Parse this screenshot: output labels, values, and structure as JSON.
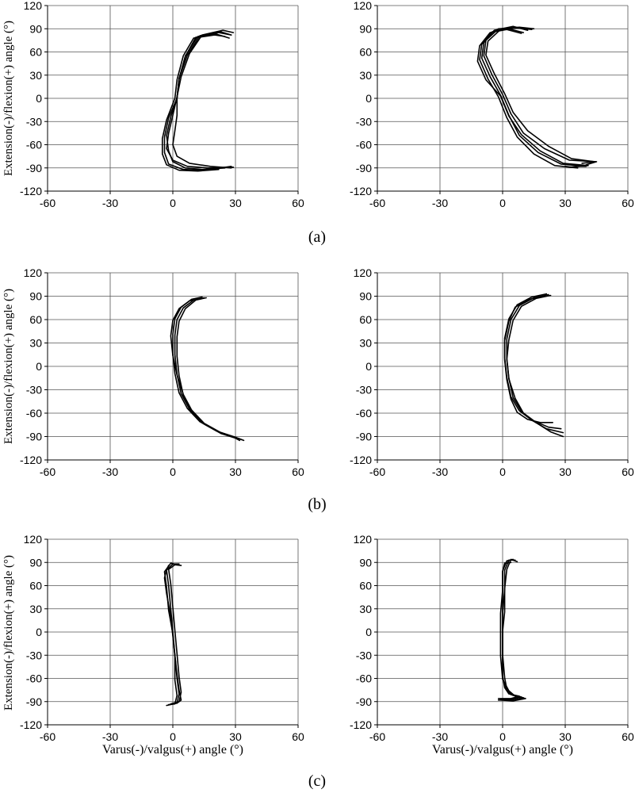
{
  "figure": {
    "captions": [
      "(a)",
      "(b)",
      "(c)"
    ],
    "ylabel": "Extension(-)/flexion(+) angle (°)",
    "xlabel": "Varus(-)/valgus(+) angle (°)"
  },
  "chart_data": [
    {
      "type": "line",
      "row": "a",
      "col": 1,
      "xlabel": "",
      "ylabel": "Extension(-)/flexion(+) angle (°)",
      "xlim": [
        -60,
        60
      ],
      "ylim": [
        -120,
        120
      ],
      "xticks": [
        -60,
        -30,
        0,
        30,
        60
      ],
      "yticks": [
        -120,
        -90,
        -60,
        -30,
        0,
        30,
        60,
        90,
        120
      ],
      "grid": true,
      "color": "#000000",
      "series": [
        {
          "x": [
            28,
            22,
            12,
            6,
            3,
            2,
            -2,
            -4,
            -4,
            -2,
            5,
            15,
            28
          ],
          "y": [
            82,
            85,
            80,
            55,
            25,
            0,
            -25,
            -50,
            -70,
            -85,
            -92,
            -93,
            -88
          ]
        },
        {
          "x": [
            29,
            24,
            14,
            8,
            4,
            2,
            0,
            -2,
            -3,
            0,
            7,
            17,
            29
          ],
          "y": [
            85,
            88,
            82,
            58,
            28,
            2,
            -22,
            -45,
            -65,
            -80,
            -88,
            -90,
            -89
          ]
        },
        {
          "x": [
            25,
            20,
            10,
            5,
            2,
            1,
            -3,
            -5,
            -5,
            -3,
            3,
            12,
            22
          ],
          "y": [
            80,
            82,
            78,
            55,
            24,
            0,
            -28,
            -52,
            -72,
            -86,
            -93,
            -94,
            -92
          ]
        },
        {
          "x": [
            28,
            23,
            13,
            7,
            3,
            2,
            2,
            1,
            0,
            2,
            8,
            18,
            28
          ],
          "y": [
            82,
            86,
            81,
            56,
            26,
            0,
            -22,
            -42,
            -60,
            -75,
            -84,
            -88,
            -90
          ]
        },
        {
          "x": [
            27,
            21,
            11,
            6,
            3,
            2,
            -1,
            -3,
            -2,
            0,
            6,
            14,
            25
          ],
          "y": [
            78,
            83,
            79,
            54,
            25,
            1,
            -24,
            -48,
            -68,
            -82,
            -90,
            -92,
            -90
          ]
        }
      ]
    },
    {
      "type": "line",
      "row": "a",
      "col": 2,
      "xlabel": "",
      "ylabel": "",
      "xlim": [
        -60,
        60
      ],
      "ylim": [
        -120,
        120
      ],
      "xticks": [
        -60,
        -30,
        0,
        30,
        60
      ],
      "yticks": [
        -120,
        -90,
        -60,
        -30,
        0,
        30,
        60,
        90,
        120
      ],
      "grid": true,
      "color": "#000000",
      "series": [
        {
          "x": [
            15,
            8,
            -2,
            -8,
            -9,
            -5,
            0,
            4,
            10,
            20,
            32,
            45,
            40
          ],
          "y": [
            90,
            92,
            90,
            75,
            55,
            30,
            5,
            -20,
            -45,
            -65,
            -80,
            -82,
            -86
          ]
        },
        {
          "x": [
            12,
            5,
            -4,
            -9,
            -10,
            -6,
            -1,
            3,
            8,
            17,
            28,
            40,
            35
          ],
          "y": [
            88,
            93,
            88,
            72,
            52,
            28,
            4,
            -22,
            -48,
            -70,
            -85,
            -88,
            -88
          ]
        },
        {
          "x": [
            10,
            3,
            -5,
            -10,
            -11,
            -7,
            -2,
            2,
            7,
            15,
            25,
            36,
            30
          ],
          "y": [
            85,
            90,
            86,
            70,
            50,
            25,
            2,
            -25,
            -50,
            -72,
            -87,
            -90,
            -88
          ]
        },
        {
          "x": [
            14,
            7,
            -1,
            -7,
            -8,
            -4,
            1,
            5,
            12,
            22,
            33,
            44,
            38
          ],
          "y": [
            89,
            91,
            89,
            74,
            56,
            32,
            6,
            -18,
            -42,
            -62,
            -78,
            -82,
            -84
          ]
        },
        {
          "x": [
            9,
            2,
            -6,
            -11,
            -12,
            -8,
            -1,
            3,
            9,
            18,
            29,
            41,
            32
          ],
          "y": [
            84,
            89,
            85,
            68,
            48,
            24,
            3,
            -23,
            -47,
            -68,
            -84,
            -87,
            -89
          ]
        }
      ]
    },
    {
      "type": "line",
      "row": "b",
      "col": 1,
      "xlabel": "",
      "ylabel": "Extension(-)/flexion(+) angle (°)",
      "xlim": [
        -60,
        60
      ],
      "ylim": [
        -120,
        120
      ],
      "xticks": [
        -60,
        -30,
        0,
        30,
        60
      ],
      "yticks": [
        -120,
        -90,
        -60,
        -30,
        0,
        30,
        60,
        90,
        120
      ],
      "grid": true,
      "color": "#000000",
      "series": [
        {
          "x": [
            15,
            10,
            5,
            2,
            1,
            1,
            2,
            4,
            8,
            14,
            22,
            30,
            33
          ],
          "y": [
            88,
            85,
            75,
            60,
            40,
            15,
            -10,
            -35,
            -55,
            -72,
            -84,
            -91,
            -94
          ]
        },
        {
          "x": [
            14,
            9,
            4,
            1,
            0,
            0,
            1,
            3,
            7,
            13,
            21,
            29,
            32
          ],
          "y": [
            89,
            86,
            76,
            61,
            41,
            16,
            -9,
            -34,
            -54,
            -71,
            -83,
            -90,
            -93
          ]
        },
        {
          "x": [
            13,
            8,
            3,
            0,
            -1,
            0,
            2,
            5,
            9,
            15,
            23,
            31,
            34
          ],
          "y": [
            87,
            84,
            74,
            59,
            39,
            14,
            -11,
            -36,
            -56,
            -73,
            -85,
            -92,
            -95
          ]
        },
        {
          "x": [
            16,
            11,
            6,
            3,
            2,
            2,
            3,
            5,
            9,
            15,
            23,
            30,
            32
          ],
          "y": [
            88,
            85,
            74,
            58,
            38,
            13,
            -12,
            -37,
            -57,
            -74,
            -86,
            -92,
            -95
          ]
        }
      ]
    },
    {
      "type": "line",
      "row": "b",
      "col": 2,
      "xlabel": "",
      "ylabel": "",
      "xlim": [
        -60,
        60
      ],
      "ylim": [
        -120,
        120
      ],
      "xticks": [
        -60,
        -30,
        0,
        30,
        60
      ],
      "yticks": [
        -120,
        -90,
        -60,
        -30,
        0,
        30,
        60,
        90,
        120
      ],
      "grid": true,
      "color": "#000000",
      "series": [
        {
          "x": [
            22,
            15,
            8,
            4,
            2,
            2,
            3,
            5,
            9,
            15,
            22,
            28
          ],
          "y": [
            92,
            88,
            78,
            60,
            35,
            10,
            -15,
            -40,
            -58,
            -70,
            -78,
            -80
          ]
        },
        {
          "x": [
            21,
            14,
            7,
            3,
            1,
            1,
            2,
            4,
            8,
            14,
            21,
            29
          ],
          "y": [
            93,
            89,
            79,
            61,
            36,
            11,
            -14,
            -39,
            -57,
            -69,
            -80,
            -85
          ]
        },
        {
          "x": [
            23,
            16,
            9,
            5,
            3,
            2,
            3,
            6,
            10,
            16,
            23,
            29
          ],
          "y": [
            91,
            87,
            77,
            59,
            34,
            9,
            -16,
            -41,
            -60,
            -72,
            -84,
            -90
          ]
        },
        {
          "x": [
            20,
            13,
            6,
            3,
            1,
            1,
            2,
            4,
            7,
            12,
            18,
            24
          ],
          "y": [
            90,
            86,
            76,
            58,
            33,
            8,
            -17,
            -42,
            -59,
            -68,
            -72,
            -72
          ]
        }
      ]
    },
    {
      "type": "line",
      "row": "c",
      "col": 1,
      "xlabel": "Varus(-)/valgus(+) angle (°)",
      "ylabel": "Extension(-)/flexion(+) angle (°)",
      "xlim": [
        -60,
        60
      ],
      "ylim": [
        -120,
        120
      ],
      "xticks": [
        -60,
        -30,
        0,
        30,
        60
      ],
      "yticks": [
        -120,
        -90,
        -60,
        -30,
        0,
        30,
        60,
        90,
        120
      ],
      "grid": true,
      "color": "#000000",
      "series": [
        {
          "x": [
            3,
            0,
            -3,
            -2,
            -1,
            0,
            1,
            2,
            3,
            2,
            -3
          ],
          "y": [
            88,
            88,
            80,
            60,
            30,
            0,
            -30,
            -60,
            -80,
            -92,
            -95
          ]
        },
        {
          "x": [
            2,
            -1,
            -4,
            -3,
            -2,
            0,
            1,
            1,
            2,
            1,
            -2
          ],
          "y": [
            87,
            89,
            78,
            58,
            28,
            -2,
            -32,
            -62,
            -82,
            -93,
            -94
          ]
        },
        {
          "x": [
            4,
            1,
            -2,
            -1,
            0,
            1,
            2,
            3,
            4,
            3,
            -1
          ],
          "y": [
            86,
            87,
            81,
            62,
            32,
            2,
            -28,
            -58,
            -78,
            -90,
            -93
          ]
        },
        {
          "x": [
            -2,
            -3,
            -4,
            -3,
            -1,
            0,
            1,
            2,
            3,
            4,
            2
          ],
          "y": [
            86,
            80,
            70,
            50,
            20,
            -5,
            -30,
            -55,
            -75,
            -88,
            -92
          ]
        }
      ]
    },
    {
      "type": "line",
      "row": "c",
      "col": 2,
      "xlabel": "Varus(-)/valgus(+) angle (°)",
      "ylabel": "",
      "xlim": [
        -60,
        60
      ],
      "ylim": [
        -120,
        120
      ],
      "xticks": [
        -60,
        -30,
        0,
        30,
        60
      ],
      "yticks": [
        -120,
        -90,
        -60,
        -30,
        0,
        30,
        60,
        90,
        120
      ],
      "grid": true,
      "color": "#000000",
      "series": [
        {
          "x": [
            6,
            3,
            1,
            1,
            0,
            0,
            0,
            0,
            2,
            5,
            10,
            4,
            -2
          ],
          "y": [
            93,
            93,
            80,
            55,
            25,
            0,
            -30,
            -60,
            -75,
            -82,
            -85,
            -88,
            -88
          ]
        },
        {
          "x": [
            5,
            2,
            0,
            0,
            -1,
            -1,
            -1,
            0,
            3,
            6,
            11,
            5,
            -1
          ],
          "y": [
            94,
            92,
            79,
            54,
            24,
            -1,
            -31,
            -61,
            -76,
            -83,
            -86,
            -89,
            -88
          ]
        },
        {
          "x": [
            7,
            4,
            2,
            1,
            1,
            0,
            0,
            1,
            2,
            4,
            9,
            3,
            -1
          ],
          "y": [
            91,
            94,
            81,
            56,
            26,
            1,
            -29,
            -59,
            -74,
            -81,
            -84,
            -87,
            -87
          ]
        },
        {
          "x": [
            4,
            1,
            0,
            0,
            0,
            0,
            0,
            0,
            1,
            3,
            8,
            4,
            -2
          ],
          "y": [
            90,
            89,
            78,
            55,
            25,
            0,
            -28,
            -57,
            -72,
            -80,
            -83,
            -86,
            -86
          ]
        }
      ]
    }
  ]
}
